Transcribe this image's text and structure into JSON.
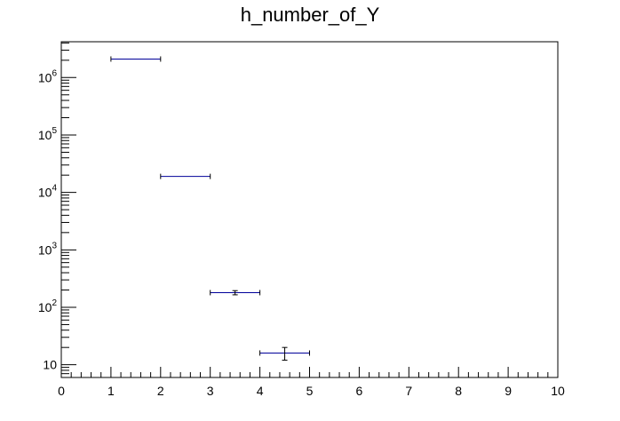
{
  "chart_data": {
    "type": "scatter",
    "title": "h_number_of_Y",
    "xlabel": "",
    "ylabel": "",
    "x_range": [
      0,
      10
    ],
    "y_range": [
      6,
      4200000
    ],
    "y_scale": "log",
    "grid": false,
    "legend": "none",
    "x_tick_labels": [
      "0",
      "1",
      "2",
      "3",
      "4",
      "5",
      "6",
      "7",
      "8",
      "9",
      "10"
    ],
    "y_tick_labels": [
      {
        "value": 10,
        "label": "10"
      },
      {
        "value": 100,
        "label": "10^2"
      },
      {
        "value": 1000,
        "label": "10^3"
      },
      {
        "value": 10000,
        "label": "10^4"
      },
      {
        "value": 100000,
        "label": "10^5"
      },
      {
        "value": 1000000,
        "label": "10^6"
      }
    ],
    "points": [
      {
        "x_low": 1,
        "x_high": 2,
        "y": 2100000,
        "y_err_low": 0,
        "y_err_high": 0
      },
      {
        "x_low": 2,
        "x_high": 3,
        "y": 19000,
        "y_err_low": 0,
        "y_err_high": 0
      },
      {
        "x_low": 3,
        "x_high": 4,
        "y": 180,
        "y_err_low": 15,
        "y_err_high": 15
      },
      {
        "x_low": 4,
        "x_high": 5,
        "y": 16,
        "y_err_low": 4,
        "y_err_high": 4
      }
    ],
    "colors": {
      "marker": "#000099",
      "error_bar": "#000000",
      "axis": "#000000"
    }
  }
}
